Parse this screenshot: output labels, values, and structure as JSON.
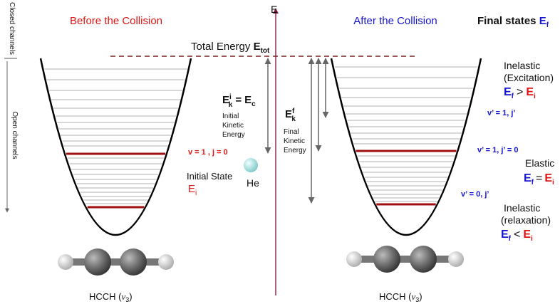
{
  "side_labels": {
    "closed": "Closed channels",
    "open": "Open channels"
  },
  "before_title": "Before the Collision",
  "after_title": "After the Collision",
  "final_states": {
    "label": "Final states",
    "symbol": "E",
    "sub": "f"
  },
  "axis_label": "E",
  "total_energy": {
    "label": "Total Energy",
    "symbol": "E",
    "sub": "tot"
  },
  "initial_kinetic": {
    "symbol": "E",
    "sup": "i",
    "sub": "k",
    "equals": "=",
    "rhs": "E",
    "rhs_sub": "c",
    "caption": [
      "Initial",
      "Kinetic",
      "Energy"
    ]
  },
  "final_kinetic": {
    "symbol": "E",
    "sup": "f",
    "sub": "k",
    "caption": [
      "Final",
      "Kinetic",
      "Energy"
    ]
  },
  "he": "He",
  "initial_level": "v = 1 , j = 0",
  "initial_state": {
    "label": "Initial State",
    "symbol": "E",
    "sub": "i"
  },
  "levels": [
    "v’ = 1, j’",
    "v’ = 1, j’ = 0",
    "v’ = 0, j’"
  ],
  "outcomes": [
    {
      "lines": [
        "Inelastic",
        "(Excitation)"
      ],
      "lhs": "E",
      "lhs_sub": "f",
      "op": ">",
      "rhs": "E",
      "rhs_sub": "i"
    },
    {
      "lines": [
        "Elastic"
      ],
      "lhs": "E",
      "lhs_sub": "f",
      "op": "=",
      "rhs": "E",
      "rhs_sub": "i"
    },
    {
      "lines": [
        "Inelastic",
        "(relaxation)"
      ],
      "lhs": "E",
      "lhs_sub": "f",
      "op": "<",
      "rhs": "E",
      "rhs_sub": "i"
    }
  ],
  "molecule_labels": [
    {
      "prefix": "HCCH (",
      "mode": "ν",
      "mode_sub": "3",
      "suffix": ")"
    },
    {
      "prefix": "HCCH (",
      "mode": "ν",
      "mode_sub": "3",
      "suffix": ")"
    }
  ]
}
